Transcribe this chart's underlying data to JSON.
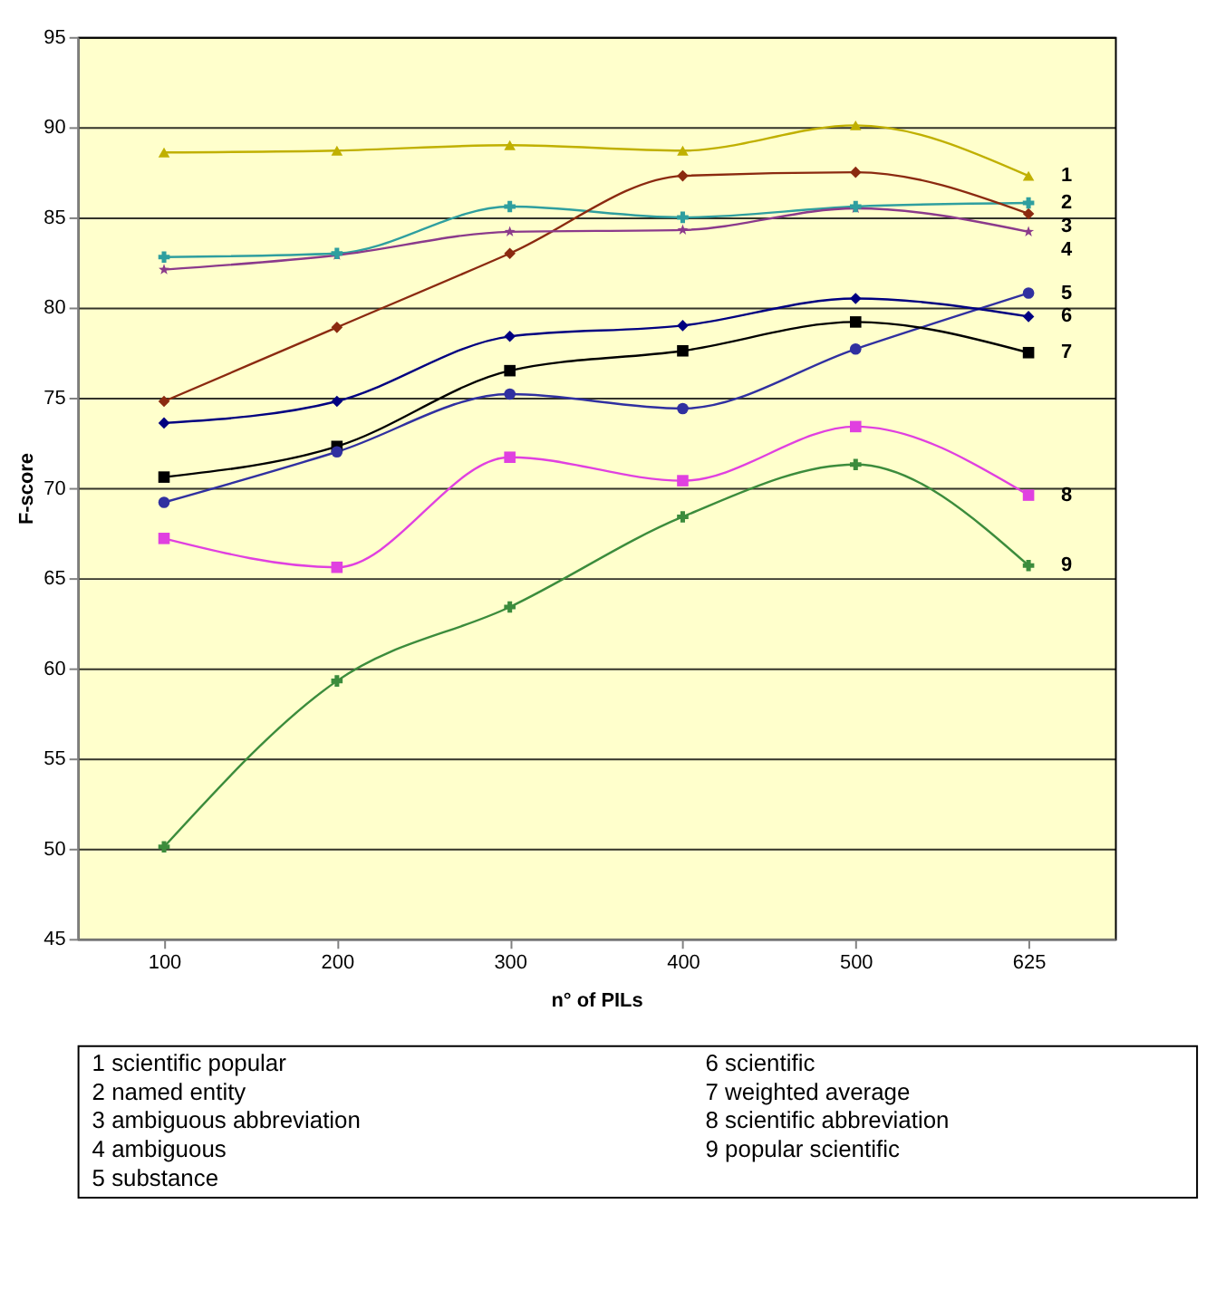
{
  "chart_data": {
    "type": "line",
    "xlabel": "n° of PILs",
    "ylabel": "F-score",
    "categories": [
      "100",
      "200",
      "300",
      "400",
      "500",
      "625"
    ],
    "series": [
      {
        "name": "1",
        "color": "#c0b000",
        "marker": "triangle",
        "values": [
          88.6,
          88.7,
          89.0,
          88.7,
          90.1,
          87.3
        ]
      },
      {
        "name": "2",
        "color": "#2f9f9f",
        "marker": "cross",
        "values": [
          82.8,
          83.0,
          85.6,
          85.0,
          85.6,
          85.8
        ]
      },
      {
        "name": "3",
        "color": "#8b2a10",
        "marker": "diamond",
        "values": [
          74.8,
          78.9,
          83.0,
          87.3,
          87.5,
          85.2
        ]
      },
      {
        "name": "4",
        "color": "#8b3a8b",
        "marker": "star",
        "values": [
          82.1,
          82.9,
          84.2,
          84.3,
          85.5,
          84.2
        ]
      },
      {
        "name": "5",
        "color": "#3030a0",
        "marker": "circle",
        "values": [
          69.2,
          72.0,
          75.2,
          74.4,
          77.7,
          80.8
        ]
      },
      {
        "name": "6",
        "color": "#000080",
        "marker": "diamond",
        "values": [
          73.6,
          74.8,
          78.4,
          79.0,
          80.5,
          79.5
        ]
      },
      {
        "name": "7",
        "color": "#000000",
        "marker": "square",
        "values": [
          70.6,
          72.3,
          76.5,
          77.6,
          79.2,
          77.5
        ]
      },
      {
        "name": "8",
        "color": "#e040e0",
        "marker": "square",
        "values": [
          67.2,
          65.6,
          71.7,
          70.4,
          73.4,
          69.6
        ]
      },
      {
        "name": "9",
        "color": "#3c8c3c",
        "marker": "cross",
        "values": [
          50.1,
          59.3,
          63.4,
          68.4,
          71.3,
          65.7
        ]
      }
    ],
    "ylim": [
      45,
      95
    ],
    "yticks": [
      45,
      50,
      55,
      60,
      65,
      70,
      75,
      80,
      85,
      90,
      95
    ],
    "grid": "y",
    "legend": false,
    "annotations": [
      "1 scientific popular",
      "2 named entity",
      "3 ambiguous abbreviation",
      "4 ambiguous",
      "5 substance",
      "6 scientific",
      "7 weighted average",
      "8 scientific abbreviation",
      "9 popular scientific"
    ]
  }
}
